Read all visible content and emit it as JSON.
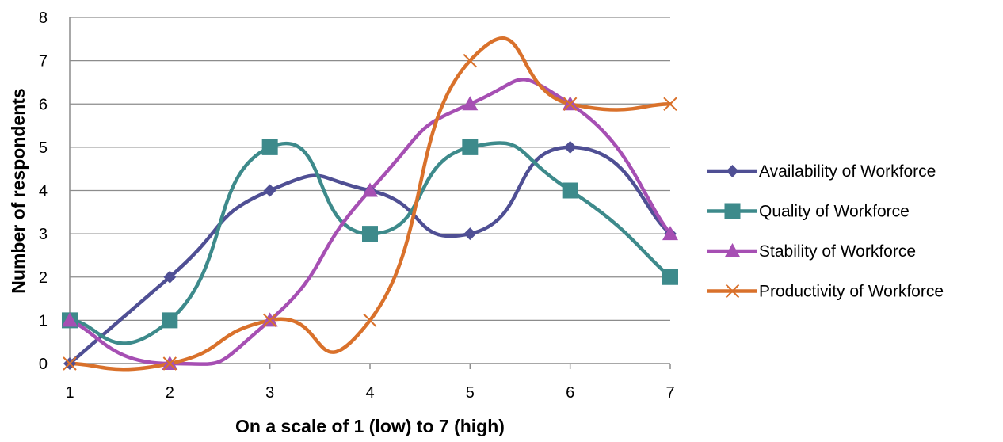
{
  "chart_data": {
    "type": "line",
    "smooth": true,
    "title": "",
    "xlabel": "On a scale of 1 (low) to 7 (high)",
    "ylabel": "Number of respondents",
    "x": [
      1,
      2,
      3,
      4,
      5,
      6,
      7
    ],
    "ylim": [
      0,
      8
    ],
    "yticks": [
      0,
      1,
      2,
      3,
      4,
      5,
      6,
      7,
      8
    ],
    "grid": "horizontal",
    "legend_position": "right",
    "series": [
      {
        "name": "Availability of Workforce",
        "values": [
          0,
          2,
          4,
          4,
          3,
          5,
          3
        ],
        "color": "#4f4f94",
        "marker": "diamond"
      },
      {
        "name": "Quality of Workforce",
        "values": [
          1,
          1,
          5,
          3,
          5,
          4,
          2
        ],
        "color": "#3d8a8b",
        "marker": "square"
      },
      {
        "name": "Stability of Workforce",
        "values": [
          1,
          0,
          1,
          4,
          6,
          6,
          3
        ],
        "color": "#a64fb3",
        "marker": "triangle"
      },
      {
        "name": "Productivity of Workforce",
        "values": [
          0,
          0,
          1,
          1,
          7,
          6,
          6
        ],
        "color": "#d9712b",
        "marker": "x"
      }
    ]
  }
}
